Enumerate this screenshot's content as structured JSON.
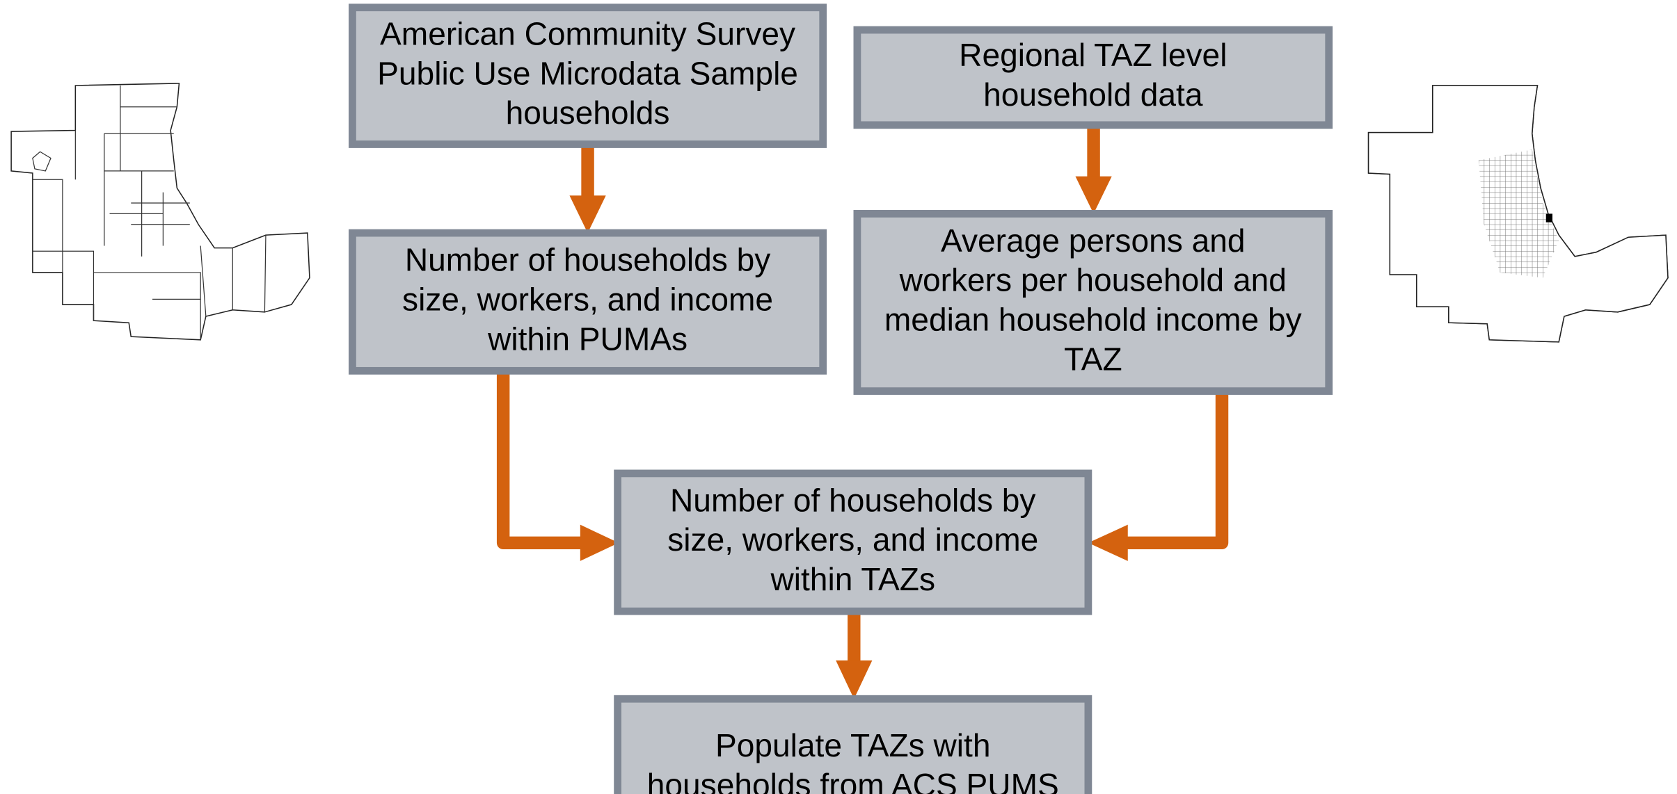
{
  "nodes": [
    {
      "lines": [
        "American Community Survey",
        "Public Use Microdata Sample",
        "households"
      ]
    },
    {
      "lines": [
        "Regional TAZ level",
        "household data"
      ]
    },
    {
      "lines": [
        "Number of households by",
        "size, workers, and income",
        "within PUMAs"
      ]
    },
    {
      "lines": [
        "Average persons and",
        "workers per household and",
        "median household income by",
        "TAZ"
      ]
    },
    {
      "lines": [
        "Number of households by",
        "size, workers, and income",
        "within TAZs"
      ]
    },
    {
      "lines": [
        "Populate TAZs with",
        "households from ACS PUMS"
      ]
    }
  ]
}
